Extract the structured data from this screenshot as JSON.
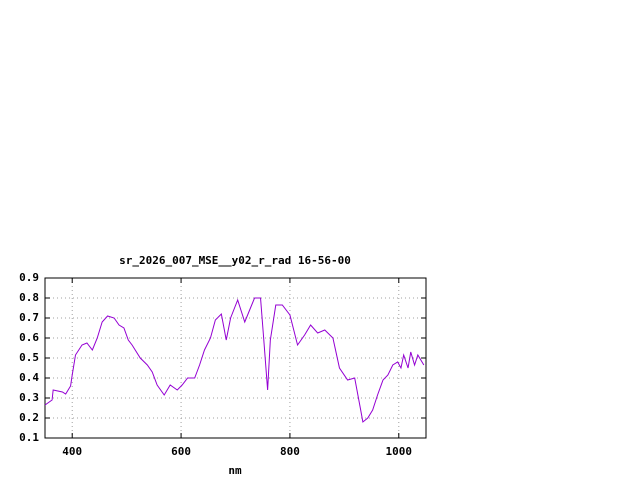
{
  "chart_data": {
    "type": "line",
    "title": "sr_2026_007_MSE__y02_r_rad 16-56-00",
    "xlabel": "nm",
    "x": [
      350,
      363,
      365,
      382,
      388,
      397,
      400,
      406,
      418,
      427,
      437,
      446,
      455,
      465,
      477,
      486,
      495,
      503,
      510,
      525,
      538,
      547,
      556,
      569,
      580,
      593,
      602,
      612,
      625,
      634,
      643,
      654,
      663,
      674,
      683,
      691,
      704,
      717,
      726,
      735,
      746,
      752,
      759,
      764,
      774,
      786,
      800,
      814,
      827,
      838,
      851,
      864,
      879,
      891,
      906,
      919,
      930,
      934,
      943,
      952,
      961,
      971,
      980,
      989,
      998,
      1004,
      1009,
      1017,
      1022,
      1029,
      1035,
      1046
    ],
    "series": [
      {
        "name": "sr_2026_007_MSE__y02_r_rad 16-56-00",
        "color": "#9400d3",
        "values": [
          0.265,
          0.29,
          0.34,
          0.33,
          0.32,
          0.36,
          0.415,
          0.515,
          0.565,
          0.575,
          0.54,
          0.6,
          0.68,
          0.71,
          0.7,
          0.665,
          0.65,
          0.59,
          0.565,
          0.5,
          0.465,
          0.43,
          0.365,
          0.315,
          0.365,
          0.34,
          0.365,
          0.4,
          0.4,
          0.465,
          0.54,
          0.6,
          0.69,
          0.72,
          0.59,
          0.7,
          0.79,
          0.68,
          0.74,
          0.8,
          0.8,
          0.59,
          0.34,
          0.59,
          0.765,
          0.765,
          0.715,
          0.565,
          0.615,
          0.665,
          0.625,
          0.64,
          0.6,
          0.45,
          0.39,
          0.4,
          0.24,
          0.18,
          0.2,
          0.24,
          0.315,
          0.39,
          0.415,
          0.465,
          0.48,
          0.45,
          0.515,
          0.45,
          0.53,
          0.465,
          0.515,
          0.465
        ]
      }
    ],
    "xlim": [
      350,
      1050
    ],
    "ylim": [
      0.1,
      0.9
    ],
    "xticks": [
      400,
      600,
      800,
      1000
    ],
    "yticks": [
      0.1,
      0.2,
      0.3,
      0.4,
      0.5,
      0.6,
      0.7,
      0.8,
      0.9
    ],
    "grid": true
  }
}
